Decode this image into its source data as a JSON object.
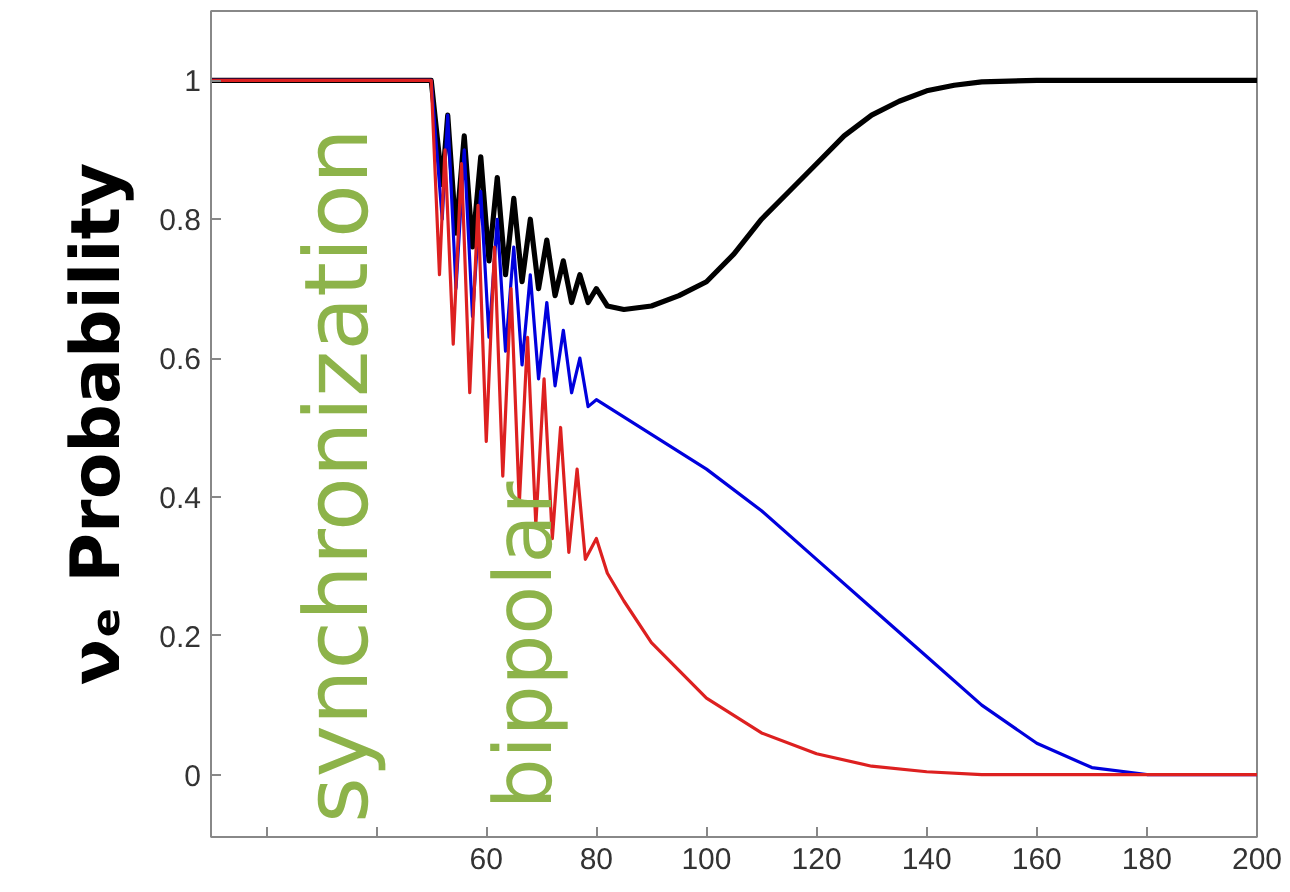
{
  "chart_data": {
    "type": "line",
    "ylabel": "νₑ Probability",
    "xlim": [
      10,
      200
    ],
    "ylim": [
      -0.09,
      1.1
    ],
    "xticks": [
      {
        "value": 20,
        "label": null
      },
      {
        "value": 40,
        "label": null
      },
      60,
      80,
      100,
      120,
      140,
      160,
      180,
      200
    ],
    "yticks": [
      0,
      0.2,
      0.4,
      0.6,
      0.8,
      1
    ],
    "grid": false,
    "marker": "none",
    "line_style": "solid",
    "annotations": [
      "synchronization",
      "bippolar"
    ],
    "series": [
      {
        "color": "#000000",
        "x": [
          10,
          50,
          52,
          53,
          54.5,
          56,
          57.5,
          59,
          60.5,
          62,
          63.5,
          65,
          66.5,
          68,
          69.5,
          71,
          72.5,
          74,
          75.5,
          77,
          78.5,
          80,
          82,
          85,
          90,
          95,
          100,
          105,
          110,
          115,
          120,
          125,
          130,
          135,
          140,
          145,
          150,
          160,
          200
        ],
        "values": [
          1,
          1,
          0.85,
          0.95,
          0.78,
          0.92,
          0.76,
          0.89,
          0.74,
          0.86,
          0.72,
          0.83,
          0.71,
          0.8,
          0.7,
          0.77,
          0.69,
          0.74,
          0.68,
          0.72,
          0.68,
          0.7,
          0.675,
          0.67,
          0.675,
          0.69,
          0.71,
          0.75,
          0.8,
          0.84,
          0.88,
          0.92,
          0.95,
          0.97,
          0.985,
          0.993,
          0.998,
          1,
          1
        ]
      },
      {
        "color": "#0000dd",
        "x": [
          10,
          50,
          52,
          53,
          54.5,
          56,
          57.5,
          59,
          60.5,
          62,
          63.5,
          65,
          66.5,
          68,
          69.5,
          71,
          72.5,
          74,
          75.5,
          77,
          78.5,
          80,
          90,
          100,
          110,
          120,
          130,
          140,
          150,
          160,
          170,
          180,
          200
        ],
        "values": [
          1,
          1,
          0.8,
          0.95,
          0.7,
          0.9,
          0.66,
          0.84,
          0.63,
          0.8,
          0.61,
          0.76,
          0.59,
          0.72,
          0.57,
          0.68,
          0.56,
          0.64,
          0.55,
          0.6,
          0.53,
          0.54,
          0.49,
          0.44,
          0.38,
          0.31,
          0.24,
          0.17,
          0.1,
          0.045,
          0.01,
          0,
          0
        ]
      },
      {
        "color": "#dd2020",
        "x": [
          10,
          50,
          51.5,
          52.5,
          54,
          55.5,
          57,
          58.5,
          60,
          61.5,
          63,
          64.5,
          66,
          67.5,
          69,
          70.5,
          72,
          73.5,
          75,
          76.5,
          78,
          80,
          82,
          85,
          90,
          95,
          100,
          110,
          120,
          130,
          140,
          150,
          200
        ],
        "values": [
          1,
          1,
          0.72,
          0.9,
          0.62,
          0.88,
          0.55,
          0.82,
          0.48,
          0.76,
          0.43,
          0.7,
          0.39,
          0.63,
          0.36,
          0.57,
          0.34,
          0.5,
          0.32,
          0.44,
          0.31,
          0.34,
          0.29,
          0.25,
          0.19,
          0.15,
          0.11,
          0.06,
          0.03,
          0.012,
          0.004,
          0,
          0
        ]
      }
    ]
  }
}
